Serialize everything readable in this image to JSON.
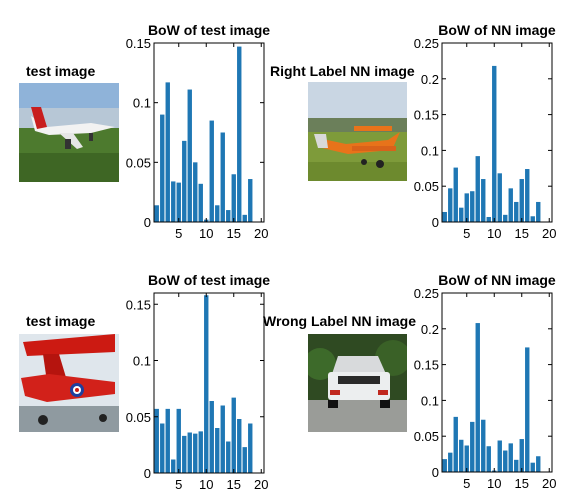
{
  "rows": [
    {
      "test_label": "test image",
      "nn_label": "Right Label NN image"
    },
    {
      "test_label": "test image",
      "nn_label": "Wrong Label NN image"
    }
  ],
  "bar_color": "#1f77b4",
  "chart_data": [
    {
      "type": "bar",
      "title": "BoW of test image",
      "x": [
        1,
        2,
        3,
        4,
        5,
        6,
        7,
        8,
        9,
        10,
        11,
        12,
        13,
        14,
        15,
        16,
        17,
        18,
        19,
        20
      ],
      "values": [
        0.014,
        0.09,
        0.117,
        0.034,
        0.033,
        0.068,
        0.111,
        0.05,
        0.032,
        0.002,
        0.085,
        0.014,
        0.075,
        0.01,
        0.04,
        0.147,
        0.006,
        0.036,
        0,
        0
      ],
      "ylim": [
        0,
        0.15
      ],
      "yticks": [
        0,
        0.05,
        0.1,
        0.15
      ],
      "ytick_labels": [
        "0",
        "0.05",
        "0.1",
        "0.15"
      ],
      "xticks": [
        5,
        10,
        15,
        20
      ],
      "xtick_labels": [
        "5",
        "10",
        "15",
        "20"
      ]
    },
    {
      "type": "bar",
      "title": "BoW of NN image",
      "x": [
        1,
        2,
        3,
        4,
        5,
        6,
        7,
        8,
        9,
        10,
        11,
        12,
        13,
        14,
        15,
        16,
        17,
        18,
        19,
        20
      ],
      "values": [
        0.014,
        0.047,
        0.076,
        0.02,
        0.04,
        0.043,
        0.092,
        0.06,
        0.007,
        0.218,
        0.068,
        0.01,
        0.047,
        0.028,
        0.06,
        0.074,
        0.008,
        0.028,
        0,
        0
      ],
      "ylim": [
        0,
        0.25
      ],
      "yticks": [
        0,
        0.05,
        0.1,
        0.15,
        0.2,
        0.25
      ],
      "ytick_labels": [
        "0",
        "0.05",
        "0.1",
        "0.15",
        "0.2",
        "0.25"
      ],
      "xticks": [
        5,
        10,
        15,
        20
      ],
      "xtick_labels": [
        "5",
        "10",
        "15",
        "20"
      ]
    },
    {
      "type": "bar",
      "title": "BoW of test image",
      "x": [
        1,
        2,
        3,
        4,
        5,
        6,
        7,
        8,
        9,
        10,
        11,
        12,
        13,
        14,
        15,
        16,
        17,
        18,
        19,
        20
      ],
      "values": [
        0.057,
        0.044,
        0.057,
        0.012,
        0.057,
        0.033,
        0.036,
        0.035,
        0.037,
        0.158,
        0.064,
        0.04,
        0.06,
        0.028,
        0.067,
        0.048,
        0.023,
        0.044,
        0,
        0
      ],
      "ylim": [
        0,
        0.16
      ],
      "yticks": [
        0,
        0.05,
        0.1,
        0.15
      ],
      "ytick_labels": [
        "0",
        "0.05",
        "0.1",
        "0.15"
      ],
      "xticks": [
        5,
        10,
        15,
        20
      ],
      "xtick_labels": [
        "5",
        "10",
        "15",
        "20"
      ]
    },
    {
      "type": "bar",
      "title": "BoW of NN image",
      "x": [
        1,
        2,
        3,
        4,
        5,
        6,
        7,
        8,
        9,
        10,
        11,
        12,
        13,
        14,
        15,
        16,
        17,
        18,
        19,
        20
      ],
      "values": [
        0.018,
        0.027,
        0.077,
        0.045,
        0.037,
        0.07,
        0.208,
        0.073,
        0.036,
        0.002,
        0.044,
        0.03,
        0.04,
        0.017,
        0.046,
        0.174,
        0.013,
        0.022,
        0,
        0
      ],
      "ylim": [
        0,
        0.25
      ],
      "yticks": [
        0,
        0.05,
        0.1,
        0.15,
        0.2,
        0.25
      ],
      "ytick_labels": [
        "0",
        "0.05",
        "0.1",
        "0.15",
        "0.2",
        "0.25"
      ],
      "xticks": [
        5,
        10,
        15,
        20
      ],
      "xtick_labels": [
        "5",
        "10",
        "15",
        "20"
      ]
    }
  ]
}
